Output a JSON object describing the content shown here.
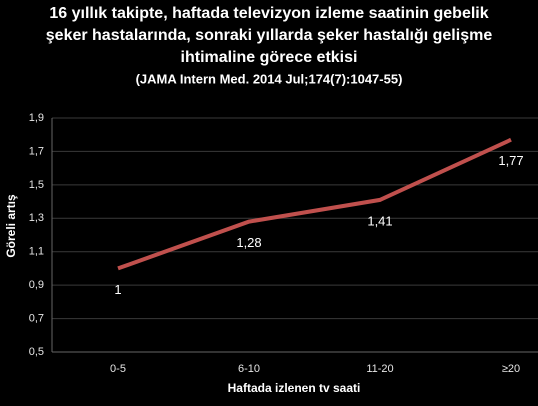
{
  "chart_data": {
    "type": "line",
    "title": [
      "16 yıllık takipte, haftada televizyon izleme saatinin gebelik",
      "şeker hastalarında, sonraki yıllarda şeker hastalığı gelişme",
      "ihtimaline görece etkisi"
    ],
    "subtitle": "(JAMA Intern Med. 2014 Jul;174(7):1047-55)",
    "x_label": "Haftada izlenen tv saati",
    "y_label": "Göreli artış",
    "categories": [
      "0-5",
      "6-10",
      "11-20",
      "≥20"
    ],
    "values": [
      1,
      1.28,
      1.41,
      1.77
    ],
    "value_labels": [
      "1",
      "1,28",
      "1,41",
      "1,77"
    ],
    "color": "#c0504d",
    "ylim": [
      0.5,
      1.9
    ],
    "yticks": [
      {
        "value": 0.5,
        "label": "0,5"
      },
      {
        "value": 0.7,
        "label": "0,7"
      },
      {
        "value": 0.9,
        "label": "0,9"
      },
      {
        "value": 1.1,
        "label": "1,1"
      },
      {
        "value": 1.3,
        "label": "1,3"
      },
      {
        "value": 1.5,
        "label": "1,5"
      },
      {
        "value": 1.7,
        "label": "1,7"
      },
      {
        "value": 1.9,
        "label": "1,9"
      }
    ],
    "grid": true
  }
}
